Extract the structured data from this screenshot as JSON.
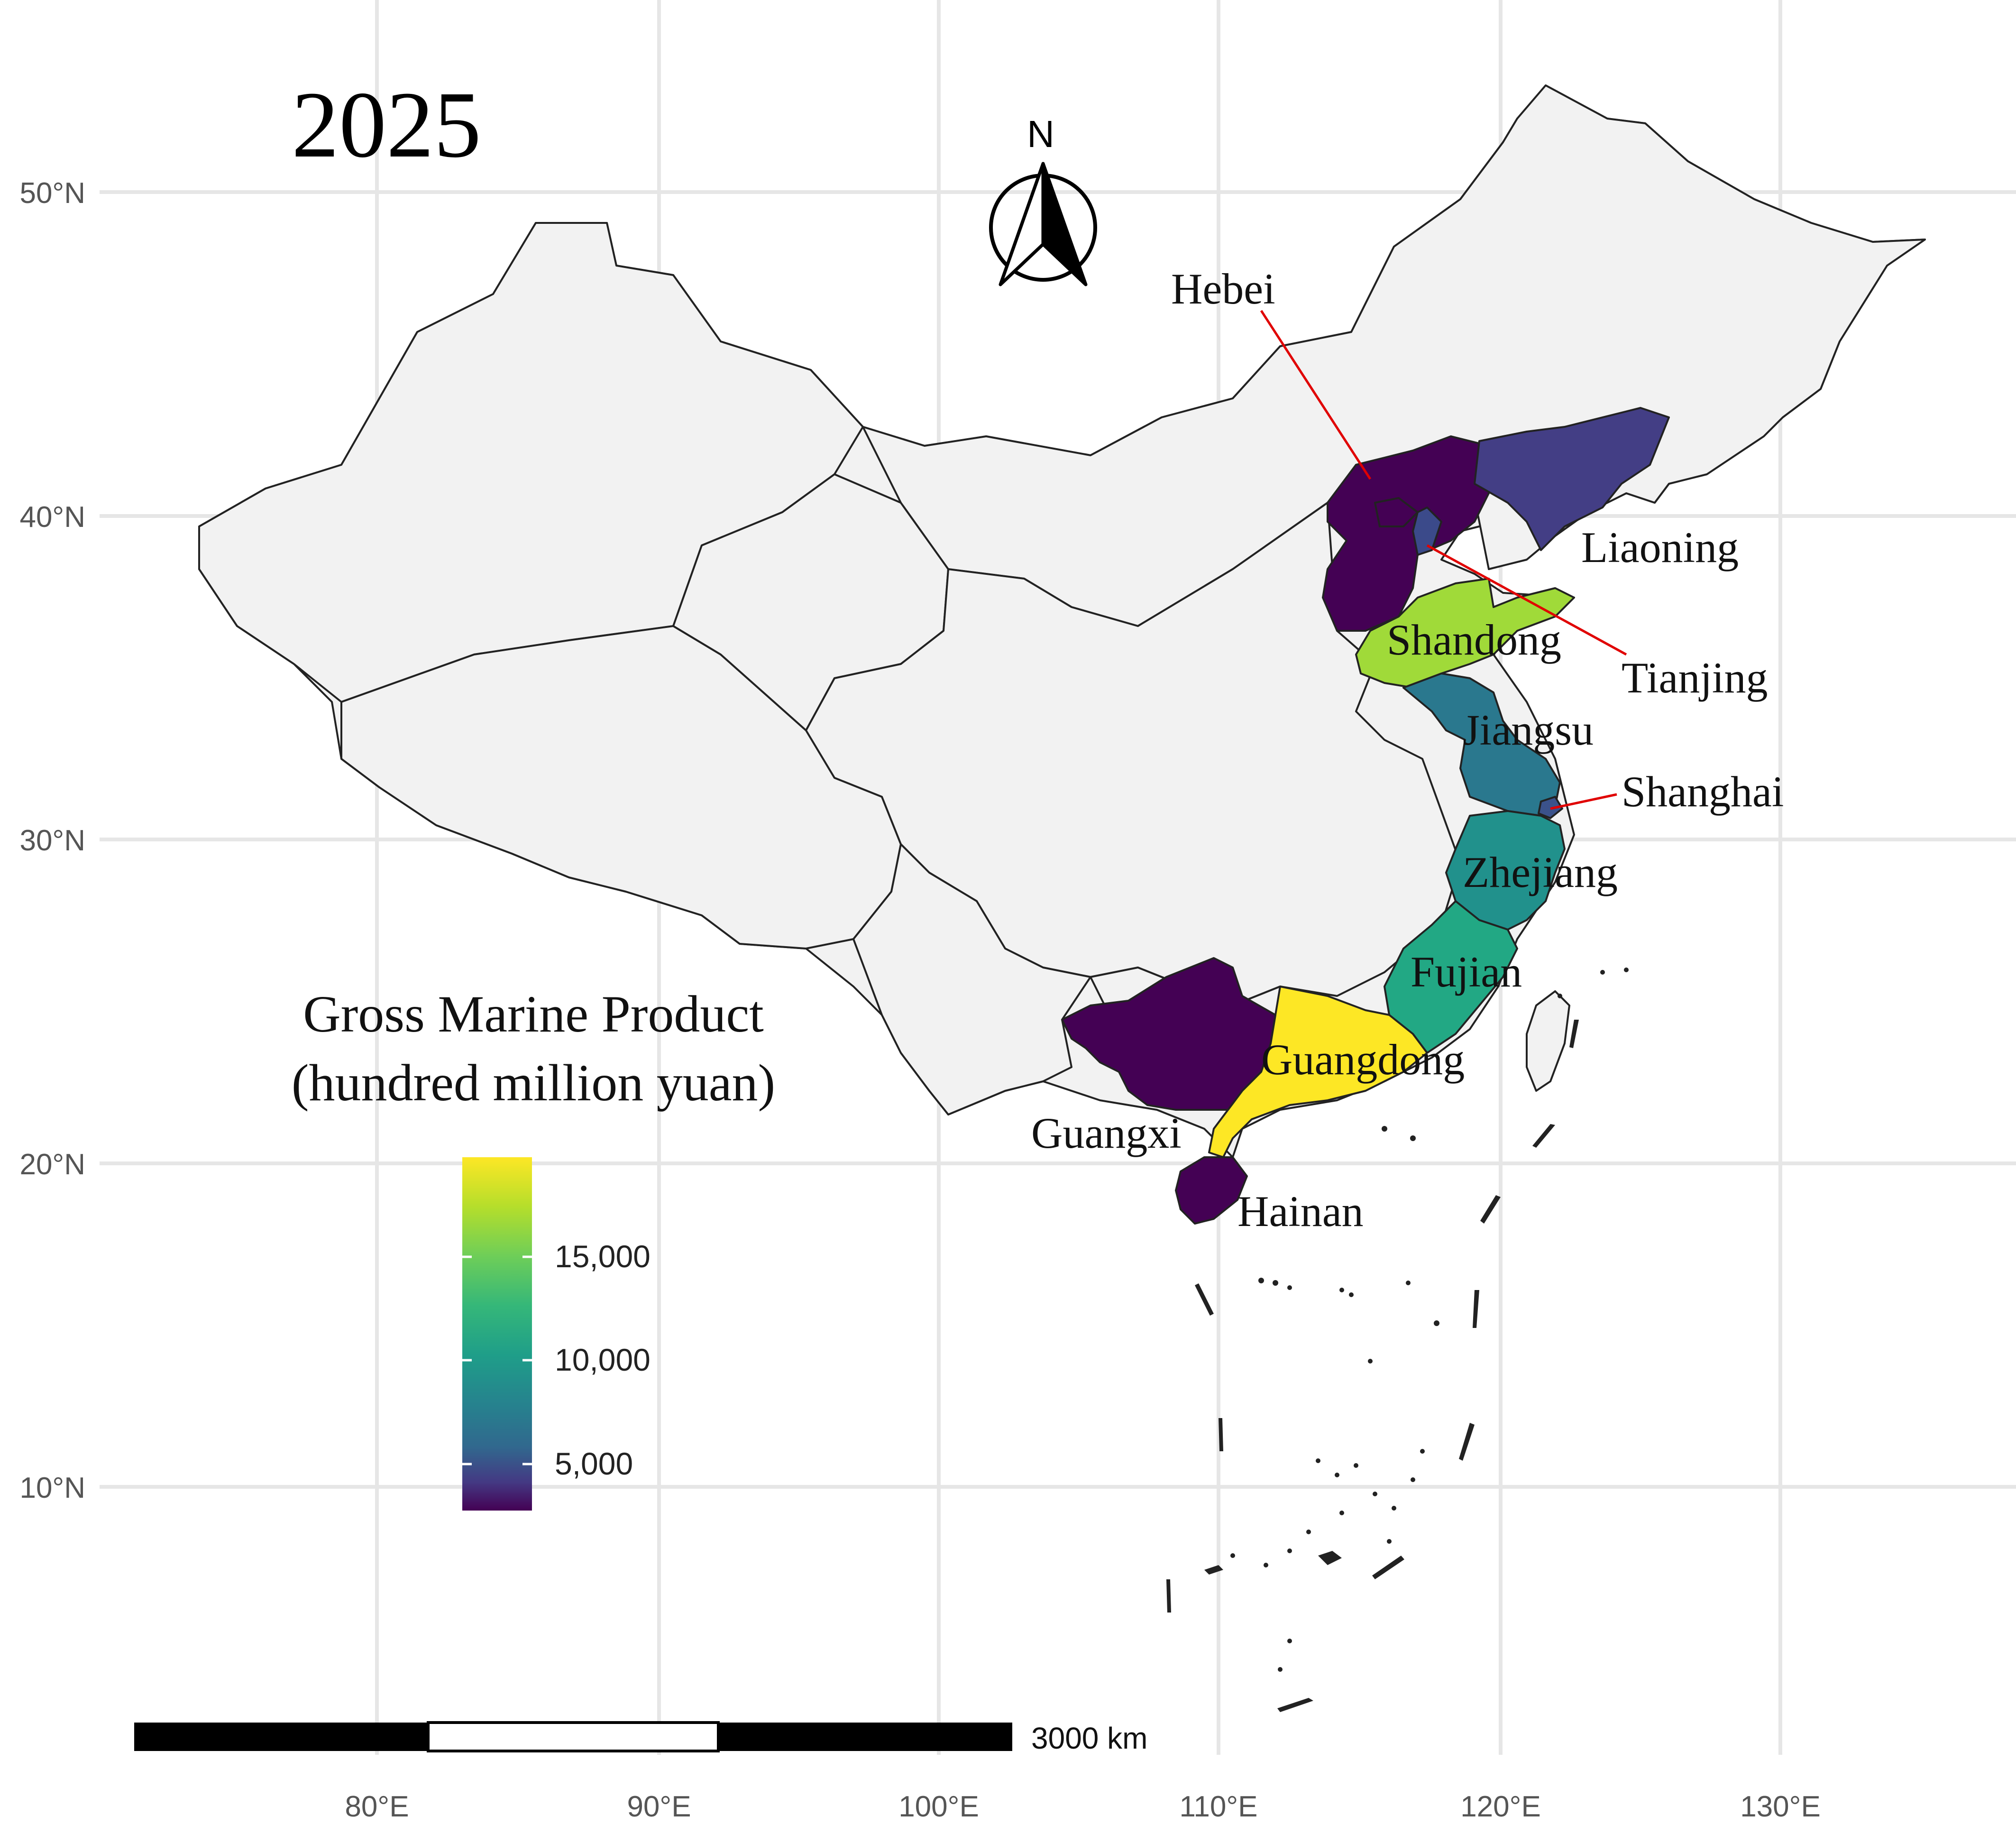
{
  "map": {
    "year_title": "2025",
    "north_arrow_label": "N",
    "legend": {
      "title_line1": "Gross Marine Product",
      "title_line2": "(hundred million yuan)",
      "ticks": [
        "15,000",
        "10,000",
        "5,000"
      ],
      "colors": [
        "#fde725",
        "#a0da39",
        "#4ac16d",
        "#1fa187",
        "#277f8e",
        "#365c8d",
        "#46327e",
        "#440154"
      ]
    },
    "scale_bar": {
      "label": "3000 km"
    },
    "lat_labels": [
      "50°N",
      "40°N",
      "30°N",
      "20°N",
      "10°N"
    ],
    "lon_labels": [
      "80°E",
      "90°E",
      "100°E",
      "110°E",
      "120°E",
      "130°E"
    ],
    "provinces": [
      {
        "name": "Hebei",
        "color": "#440154"
      },
      {
        "name": "Liaoning",
        "color": "#433e85"
      },
      {
        "name": "Tianjing",
        "color": "#3b4a8a"
      },
      {
        "name": "Shandong",
        "color": "#a0da39"
      },
      {
        "name": "Jiangsu",
        "color": "#2a788e"
      },
      {
        "name": "Shanghai",
        "color": "#3b528b"
      },
      {
        "name": "Zhejiang",
        "color": "#21918c"
      },
      {
        "name": "Fujian",
        "color": "#22a884"
      },
      {
        "name": "Guangdong",
        "color": "#fde725"
      },
      {
        "name": "Guangxi",
        "color": "#440154"
      },
      {
        "name": "Hainan",
        "color": "#440154"
      }
    ]
  }
}
